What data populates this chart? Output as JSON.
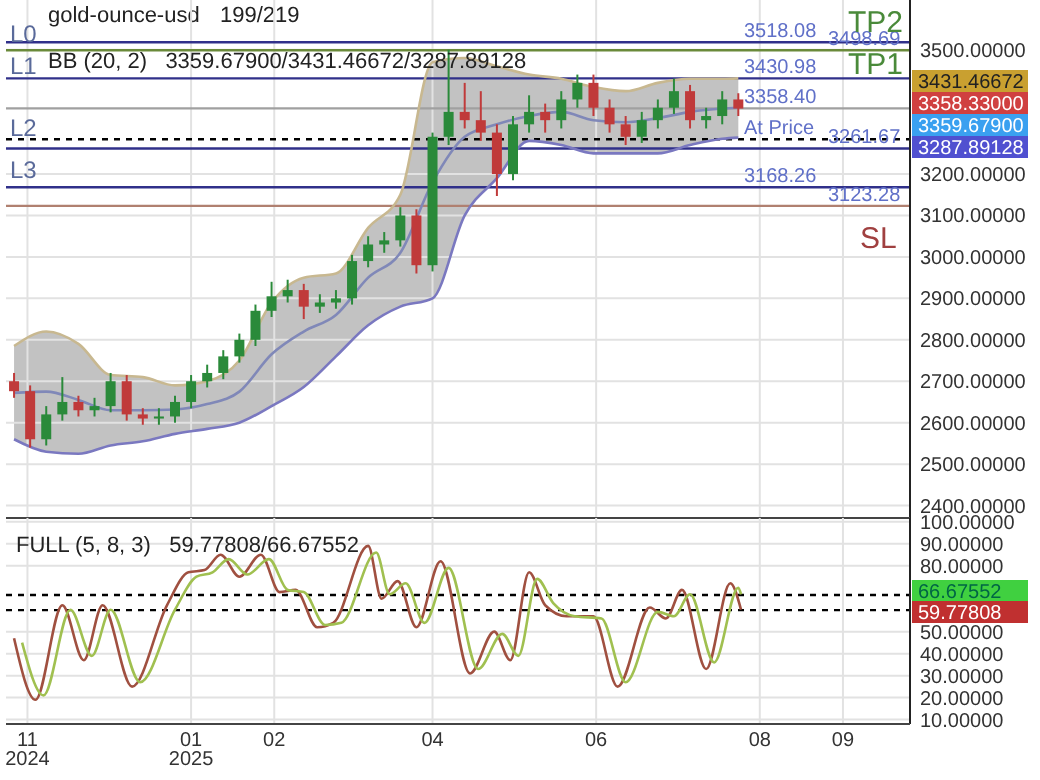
{
  "chart_data": [
    {
      "type": "candlestick",
      "title": "gold-ounce-usd",
      "subtitle": "199/219",
      "x": [
        "2024-10-27",
        "2024-11-02",
        "2024-11-08",
        "2024-11-14",
        "2024-11-20",
        "2024-11-26",
        "2024-12-02",
        "2024-12-08",
        "2024-12-14",
        "2024-12-20",
        "2024-12-26",
        "2025-01-01",
        "2025-01-07",
        "2025-01-13",
        "2025-01-19",
        "2025-01-25",
        "2025-01-31",
        "2025-02-06",
        "2025-02-12",
        "2025-02-18",
        "2025-02-24",
        "2025-03-02",
        "2025-03-08",
        "2025-03-14",
        "2025-03-20",
        "2025-03-26",
        "2025-04-01",
        "2025-04-07",
        "2025-04-13",
        "2025-04-19",
        "2025-04-25",
        "2025-05-01",
        "2025-05-07",
        "2025-05-13",
        "2025-05-19",
        "2025-05-25",
        "2025-05-31",
        "2025-06-06",
        "2025-06-12",
        "2025-06-18",
        "2025-06-24",
        "2025-06-30",
        "2025-07-06",
        "2025-07-12",
        "2025-07-18",
        "2025-07-24"
      ],
      "ohlc": [
        [
          2700,
          2720,
          2660,
          2676
        ],
        [
          2676,
          2690,
          2540,
          2560
        ],
        [
          2560,
          2640,
          2545,
          2620
        ],
        [
          2620,
          2710,
          2605,
          2650
        ],
        [
          2650,
          2665,
          2615,
          2630
        ],
        [
          2630,
          2660,
          2615,
          2640
        ],
        [
          2640,
          2720,
          2625,
          2700
        ],
        [
          2700,
          2715,
          2605,
          2620
        ],
        [
          2620,
          2635,
          2595,
          2610
        ],
        [
          2610,
          2635,
          2595,
          2615
        ],
        [
          2615,
          2665,
          2600,
          2650
        ],
        [
          2650,
          2715,
          2635,
          2700
        ],
        [
          2700,
          2740,
          2685,
          2720
        ],
        [
          2720,
          2775,
          2705,
          2760
        ],
        [
          2760,
          2815,
          2745,
          2800
        ],
        [
          2800,
          2885,
          2785,
          2870
        ],
        [
          2870,
          2940,
          2855,
          2905
        ],
        [
          2905,
          2945,
          2890,
          2920
        ],
        [
          2920,
          2935,
          2850,
          2880
        ],
        [
          2880,
          2910,
          2865,
          2890
        ],
        [
          2890,
          2920,
          2875,
          2900
        ],
        [
          2900,
          3005,
          2885,
          2990
        ],
        [
          2990,
          3050,
          2975,
          3030
        ],
        [
          3030,
          3060,
          3010,
          3040
        ],
        [
          3040,
          3120,
          3025,
          3100
        ],
        [
          3100,
          3115,
          2960,
          2980
        ],
        [
          2980,
          3300,
          2965,
          3290
        ],
        [
          3290,
          3500,
          3270,
          3350
        ],
        [
          3350,
          3420,
          3310,
          3330
        ],
        [
          3330,
          3400,
          3280,
          3300
        ],
        [
          3300,
          3320,
          3147,
          3200
        ],
        [
          3200,
          3340,
          3185,
          3320
        ],
        [
          3320,
          3390,
          3300,
          3350
        ],
        [
          3350,
          3370,
          3300,
          3330
        ],
        [
          3330,
          3400,
          3310,
          3380
        ],
        [
          3380,
          3440,
          3360,
          3420
        ],
        [
          3420,
          3440,
          3340,
          3360
        ],
        [
          3360,
          3380,
          3300,
          3320
        ],
        [
          3320,
          3340,
          3270,
          3290
        ],
        [
          3290,
          3350,
          3275,
          3330
        ],
        [
          3330,
          3380,
          3310,
          3360
        ],
        [
          3360,
          3430,
          3345,
          3400
        ],
        [
          3400,
          3415,
          3310,
          3330
        ],
        [
          3330,
          3360,
          3310,
          3340
        ],
        [
          3340,
          3400,
          3320,
          3380
        ],
        [
          3380,
          3395,
          3340,
          3358
        ]
      ],
      "series": [
        {
          "type": "line",
          "color": "#c8b890",
          "x": [
            "2024-10-27",
            "2024-11-08",
            "2024-11-20",
            "2024-12-02",
            "2024-12-14",
            "2024-12-26",
            "2025-01-07",
            "2025-01-19",
            "2025-01-31",
            "2025-02-12",
            "2025-02-24",
            "2025-03-08",
            "2025-03-20",
            "2025-04-01",
            "2025-04-13",
            "2025-04-25",
            "2025-05-07",
            "2025-05-19",
            "2025-05-31",
            "2025-06-12",
            "2025-06-24",
            "2025-07-06",
            "2025-07-18",
            "2025-07-24"
          ],
          "values": [
            2785,
            2820,
            2790,
            2715,
            2710,
            2690,
            2700,
            2750,
            2890,
            2950,
            2960,
            3070,
            3150,
            3470,
            3480,
            3460,
            3440,
            3430,
            3410,
            3400,
            3420,
            3430,
            3430,
            3431
          ]
        },
        {
          "type": "line",
          "color": "#7a78c0",
          "x": [
            "2024-10-27",
            "2024-11-08",
            "2024-11-20",
            "2024-12-02",
            "2024-12-14",
            "2024-12-26",
            "2025-01-07",
            "2025-01-19",
            "2025-01-31",
            "2025-02-12",
            "2025-02-24",
            "2025-03-08",
            "2025-03-20",
            "2025-04-01",
            "2025-04-13",
            "2025-04-25",
            "2025-05-07",
            "2025-05-19",
            "2025-05-31",
            "2025-06-12",
            "2025-06-24",
            "2025-07-06",
            "2025-07-18",
            "2025-07-24"
          ],
          "values": [
            2560,
            2530,
            2525,
            2545,
            2555,
            2573,
            2585,
            2600,
            2640,
            2686,
            2760,
            2835,
            2880,
            2900,
            3100,
            3190,
            3280,
            3270,
            3250,
            3250,
            3250,
            3270,
            3285,
            3288
          ]
        },
        {
          "type": "line",
          "color": "#8088b8",
          "x": [
            "2024-10-27",
            "2024-11-08",
            "2024-11-20",
            "2024-12-02",
            "2024-12-14",
            "2024-12-26",
            "2025-01-07",
            "2025-01-19",
            "2025-01-31",
            "2025-02-12",
            "2025-02-24",
            "2025-03-08",
            "2025-03-20",
            "2025-04-01",
            "2025-04-13",
            "2025-04-25",
            "2025-05-07",
            "2025-05-19",
            "2025-05-31",
            "2025-06-12",
            "2025-06-24",
            "2025-07-06",
            "2025-07-18",
            "2025-07-24"
          ],
          "values": [
            2672,
            2675,
            2655,
            2630,
            2630,
            2632,
            2645,
            2675,
            2765,
            2820,
            2860,
            2950,
            3010,
            3180,
            3290,
            3320,
            3340,
            3350,
            3330,
            3325,
            3335,
            3350,
            3358,
            3360
          ],
          "lower": [
            2560,
            2530,
            2525,
            2545,
            2555,
            2573,
            2585,
            2600,
            2640,
            2686,
            2760,
            2835,
            2880,
            2900,
            3100,
            3190,
            3280,
            3270,
            3250,
            3250,
            3250,
            3270,
            3285,
            3288
          ],
          "upper": [
            2785,
            2820,
            2790,
            2715,
            2710,
            2690,
            2700,
            2750,
            2890,
            2950,
            2960,
            3070,
            3150,
            3470,
            3480,
            3460,
            3440,
            3430,
            3410,
            3400,
            3420,
            3430,
            3430,
            3431
          ]
        }
      ],
      "xlim": [
        "2024-10-24",
        "2025-09-26"
      ],
      "ylim": [
        2370,
        3620
      ],
      "xticks": [
        {
          "value": "2024-11-01",
          "label": null
        },
        {
          "value": "2025-01-01",
          "label": null
        },
        {
          "value": "2025-02-01",
          "label": null
        },
        {
          "value": "2025-04-01",
          "label": null
        },
        {
          "value": "2025-06-01",
          "label": null
        },
        {
          "value": "2025-08-01",
          "label": null
        },
        {
          "value": "2025-09-01",
          "label": null
        }
      ],
      "yticks": [
        {
          "value": 2400,
          "label": "2400.00000"
        },
        {
          "value": 2500,
          "label": "2500.00000"
        },
        {
          "value": 2600,
          "label": "2600.00000"
        },
        {
          "value": 2700,
          "label": "2700.00000"
        },
        {
          "value": 2800,
          "label": "2800.00000"
        },
        {
          "value": 2900,
          "label": "2900.00000"
        },
        {
          "value": 3000,
          "label": "3000.00000"
        },
        {
          "value": 3100,
          "label": "3100.00000"
        },
        {
          "value": 3200,
          "label": "3200.00000"
        },
        {
          "value": 3500,
          "label": "3500.00000"
        }
      ],
      "tick_labels": "y",
      "grid": true,
      "ref_lines": [
        {
          "axis": "y",
          "value": 3518.08,
          "label": "3518.08",
          "color": "#30308a"
        },
        {
          "axis": "y",
          "value": 3498.69,
          "label": "3498.69",
          "color": "#6a8a3a"
        },
        {
          "axis": "y",
          "value": 3430.98,
          "label": "3430.98",
          "color": "#30308a"
        },
        {
          "axis": "y",
          "value": 3358.4,
          "label": "3358.40",
          "color": "#a0a0a0"
        },
        {
          "axis": "y",
          "value": 3284,
          "label": "At Price",
          "color": "#000000",
          "line_style": "dashed"
        },
        {
          "axis": "y",
          "value": 3261.67,
          "label": "3261.67",
          "color": "#30308a"
        },
        {
          "axis": "y",
          "value": 3168.26,
          "label": "3168.26",
          "color": "#30308a"
        },
        {
          "axis": "y",
          "value": 3123.28,
          "label": "3123.28",
          "color": "#b08070"
        }
      ],
      "annotations": [
        "BB (20, 2)   3359.67900/3431.46672/3287.89128",
        "L0",
        "L1",
        "L2",
        "L3",
        "TP2",
        "TP1",
        "SL",
        "3431.46672",
        "3358.33000",
        "3359.67900",
        "3287.89128"
      ]
    },
    {
      "type": "line",
      "series": [
        {
          "color": "#a05040",
          "x": [
            "2024-10-27",
            "2024-11-04",
            "2024-11-14",
            "2024-11-22",
            "2024-11-29",
            "2024-12-10",
            "2024-12-23",
            "2024-12-31",
            "2025-01-06",
            "2025-01-12",
            "2025-01-19",
            "2025-01-27",
            "2025-02-03",
            "2025-02-09",
            "2025-02-17",
            "2025-02-23",
            "2025-03-08",
            "2025-03-13",
            "2025-03-19",
            "2025-03-26",
            "2025-04-04",
            "2025-04-15",
            "2025-04-24",
            "2025-04-30",
            "2025-05-07",
            "2025-05-13",
            "2025-05-21",
            "2025-05-31",
            "2025-06-09",
            "2025-06-21",
            "2025-06-27",
            "2025-07-03",
            "2025-07-12",
            "2025-07-21",
            "2025-07-25"
          ],
          "values": [
            47,
            19,
            62,
            37,
            62,
            25,
            62,
            77,
            78,
            85,
            75,
            85,
            68,
            69,
            52,
            54,
            89,
            65,
            73,
            52,
            82,
            31,
            50,
            37,
            77,
            62,
            57,
            57,
            25,
            61,
            56,
            69,
            33,
            72,
            60
          ]
        },
        {
          "color": "#a0c050",
          "x": [
            "2024-10-30",
            "2024-11-07",
            "2024-11-17",
            "2024-11-25",
            "2024-12-02",
            "2024-12-13",
            "2024-12-26",
            "2025-01-03",
            "2025-01-09",
            "2025-01-15",
            "2025-01-22",
            "2025-01-30",
            "2025-02-06",
            "2025-02-12",
            "2025-02-20",
            "2025-02-26",
            "2025-03-11",
            "2025-03-16",
            "2025-03-22",
            "2025-03-29",
            "2025-04-07",
            "2025-04-18",
            "2025-04-27",
            "2025-05-03",
            "2025-05-10",
            "2025-05-16",
            "2025-05-24",
            "2025-06-03",
            "2025-06-12",
            "2025-06-24",
            "2025-06-30",
            "2025-07-06",
            "2025-07-15",
            "2025-07-24",
            "2025-07-25"
          ],
          "values": [
            45,
            21,
            60,
            39,
            60,
            27,
            60,
            75,
            77,
            83,
            76,
            83,
            69,
            68,
            53,
            54,
            86,
            67,
            72,
            54,
            79,
            33,
            49,
            39,
            74,
            63,
            57,
            56,
            27,
            59,
            57,
            67,
            36,
            70,
            67
          ]
        }
      ],
      "xlim": [
        "2024-10-24",
        "2025-09-26"
      ],
      "ylim": [
        8,
        101.7
      ],
      "xticks": [
        {
          "value": "2024-11-01",
          "label": "11\n2024"
        },
        {
          "value": "2025-01-01",
          "label": "01\n2025"
        },
        {
          "value": "2025-02-01",
          "label": "02"
        },
        {
          "value": "2025-04-01",
          "label": "04"
        },
        {
          "value": "2025-06-01",
          "label": "06"
        },
        {
          "value": "2025-08-01",
          "label": "08"
        },
        {
          "value": "2025-09-01",
          "label": "09"
        }
      ],
      "yticks": [
        {
          "value": 10,
          "label": "10.00000"
        },
        {
          "value": 20,
          "label": "20.00000"
        },
        {
          "value": 30,
          "label": "30.00000"
        },
        {
          "value": 40,
          "label": "40.00000"
        },
        {
          "value": 50,
          "label": "50.00000"
        },
        {
          "value": 80,
          "label": "80.00000"
        },
        {
          "value": 90,
          "label": "90.00000"
        },
        {
          "value": 100,
          "label": "100.00000"
        }
      ],
      "grid": true,
      "ref_lines": [
        {
          "axis": "y",
          "value": 66.67552,
          "color": "#000000",
          "line_style": "dashed"
        },
        {
          "axis": "y",
          "value": 59.77808,
          "color": "#000000",
          "line_style": "dashed"
        }
      ],
      "annotations": [
        "FULL (5, 8, 3)   59.77808/66.67552",
        "66.67552",
        "59.77808"
      ]
    }
  ]
}
